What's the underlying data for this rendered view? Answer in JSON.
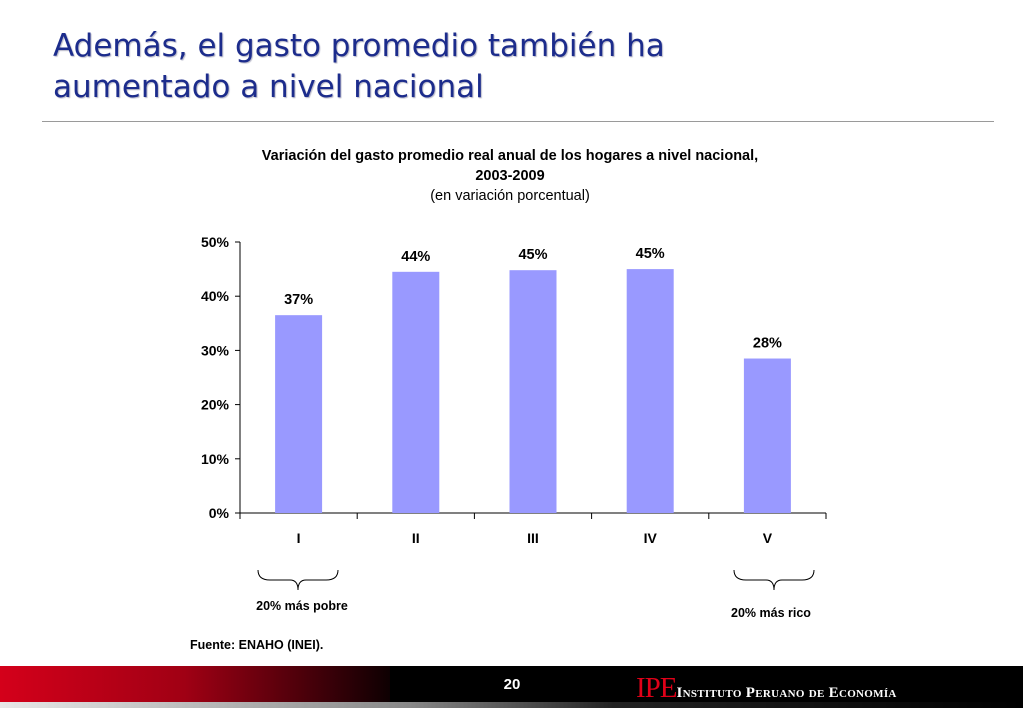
{
  "slide": {
    "title_line1": "Además, el gasto promedio también ha",
    "title_line2": "aumentado a nivel nacional",
    "page_number": "20",
    "source": "Fuente: ENAHO (INEI).",
    "logo_mark": "IPE",
    "logo_text": "Instituto Peruano de Economía"
  },
  "chart_data": {
    "type": "bar",
    "title": "Variación del gasto promedio real anual de los hogares a nivel nacional,",
    "title_line2": "2003-2009",
    "subtitle": "(en variación porcentual)",
    "categories": [
      "I",
      "II",
      "III",
      "IV",
      "V"
    ],
    "values": [
      36.5,
      44.5,
      44.8,
      45.0,
      28.5
    ],
    "data_labels": [
      "37%",
      "44%",
      "45%",
      "45%",
      "28%"
    ],
    "y_ticks": [
      0,
      10,
      20,
      30,
      40,
      50
    ],
    "y_tick_labels": [
      "0%",
      "10%",
      "20%",
      "30%",
      "40%",
      "50%"
    ],
    "ylim": [
      0,
      50
    ],
    "xlabel": "",
    "ylabel": "",
    "grid": false,
    "bar_color": "#9999ff",
    "annotations": [
      "20% más pobre",
      "20% más rico"
    ]
  }
}
